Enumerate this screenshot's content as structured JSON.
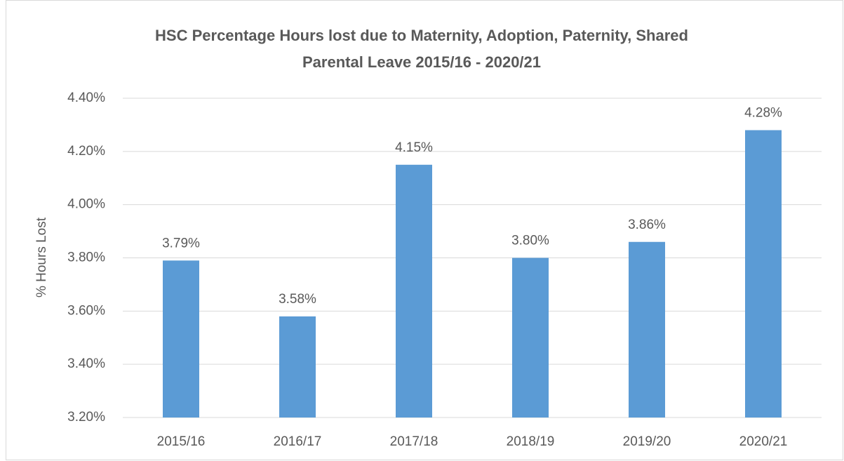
{
  "chart_data": {
    "type": "bar",
    "title": "HSC Percentage Hours lost due to Maternity, Adoption,  Paternity, Shared Parental Leave 2015/16 - 2020/21",
    "y_label": "% Hours Lost",
    "categories": [
      "2015/16",
      "2016/17",
      "2017/18",
      "2018/19",
      "2019/20",
      "2020/21"
    ],
    "values": [
      3.79,
      3.58,
      4.15,
      3.8,
      3.86,
      4.28
    ],
    "value_labels": [
      "3.79%",
      "3.58%",
      "4.15%",
      "3.80%",
      "3.86%",
      "4.28%"
    ],
    "color": "#5b9bd5",
    "ylim": [
      3.2,
      4.4
    ],
    "yticks": [
      {
        "value": 3.2,
        "label": "3.20%"
      },
      {
        "value": 3.4,
        "label": "3.40%"
      },
      {
        "value": 3.6,
        "label": "3.60%"
      },
      {
        "value": 3.8,
        "label": "3.80%"
      },
      {
        "value": 4.0,
        "label": "4.00%"
      },
      {
        "value": 4.2,
        "label": "4.20%"
      },
      {
        "value": 4.4,
        "label": "4.40%"
      }
    ],
    "grid": true
  }
}
